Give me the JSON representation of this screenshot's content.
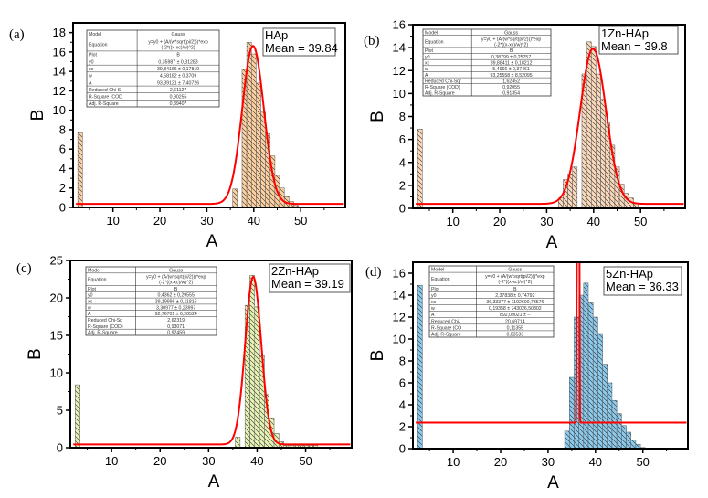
{
  "chart_data": [
    {
      "type": "bar",
      "panel_label": "(a)",
      "title": "",
      "xlabel": "A",
      "ylabel": "B",
      "xlim": [
        1.5,
        59.5
      ],
      "ylim": [
        0,
        19
      ],
      "xticks": [
        10,
        20,
        30,
        40,
        50
      ],
      "yticks": [
        0,
        2,
        4,
        6,
        8,
        10,
        12,
        14,
        16,
        18
      ],
      "bar_color": "#fdd1a2",
      "hatch": "diagonal",
      "legend": {
        "lines": [
          "HAp",
          "Mean = 39.84"
        ],
        "placement": "top-right"
      },
      "bins": [
        {
          "x": 3,
          "y": 7.7
        },
        {
          "x": 36,
          "y": 1.9
        },
        {
          "x": 38,
          "y": 14.2
        },
        {
          "x": 39,
          "y": 17.0
        },
        {
          "x": 40,
          "y": 15.8
        },
        {
          "x": 41,
          "y": 12.8
        },
        {
          "x": 42,
          "y": 9.8
        },
        {
          "x": 43,
          "y": 7.6
        },
        {
          "x": 44,
          "y": 5.3
        },
        {
          "x": 45,
          "y": 3.3
        },
        {
          "x": 46,
          "y": 2.0
        },
        {
          "x": 47,
          "y": 1.1
        },
        {
          "x": 48,
          "y": 0.6
        },
        {
          "x": 49,
          "y": 0.2
        }
      ],
      "fit": {
        "name": "Gauss",
        "y0": 0.35987,
        "xc": 39.84166,
        "w": 4.58182,
        "A": 93.39121,
        "color": "#ff0000"
      },
      "fit_table": [
        [
          "Model",
          "Gauss"
        ],
        [
          "Equation",
          "y=y0 + (A/(w*sqrt(pi/2)))*exp(-2*((x-xc)/w)^2)"
        ],
        [
          "Plot",
          "B"
        ],
        [
          "y0",
          "0,35987 ± 0,31283"
        ],
        [
          "xc",
          "39,84166 ± 0,17819"
        ],
        [
          "w",
          "4,58182 ± 0,3709"
        ],
        [
          "A",
          "93,39121 ± 7,40726"
        ],
        [
          "Reduced Chi-S",
          "2,61127"
        ],
        [
          "R-Square (COD",
          "0,90255"
        ],
        [
          "Adj. R-Square",
          "0,89407"
        ]
      ]
    },
    {
      "type": "bar",
      "panel_label": "(b)",
      "title": "",
      "xlabel": "A",
      "ylabel": "B",
      "xlim": [
        1.5,
        59.5
      ],
      "ylim": [
        0,
        16
      ],
      "xticks": [
        10,
        20,
        30,
        40,
        50
      ],
      "yticks": [
        0,
        2,
        4,
        6,
        8,
        10,
        12,
        14,
        16
      ],
      "bar_color": "#fad9bc",
      "hatch": "diagonal",
      "legend": {
        "lines": [
          "1Zn-HAp",
          "Mean = 39.8"
        ],
        "placement": "top-right"
      },
      "bins": [
        {
          "x": 3,
          "y": 6.9
        },
        {
          "x": 33,
          "y": 0.9
        },
        {
          "x": 34,
          "y": 2.5
        },
        {
          "x": 35,
          "y": 3.0
        },
        {
          "x": 36,
          "y": 3.6
        },
        {
          "x": 38,
          "y": 11.7
        },
        {
          "x": 39,
          "y": 14.5
        },
        {
          "x": 40,
          "y": 14.1
        },
        {
          "x": 41,
          "y": 11.7
        },
        {
          "x": 42,
          "y": 9.5
        },
        {
          "x": 43,
          "y": 7.5
        },
        {
          "x": 44,
          "y": 5.5
        },
        {
          "x": 45,
          "y": 3.6
        },
        {
          "x": 46,
          "y": 2.1
        },
        {
          "x": 47,
          "y": 1.3
        },
        {
          "x": 48,
          "y": 0.9
        },
        {
          "x": 49,
          "y": 0.4
        },
        {
          "x": 50,
          "y": 0.1
        }
      ],
      "fit": {
        "name": "Gauss",
        "y0": 0.38799,
        "xc": 39.88411,
        "w": 5.4966,
        "A": 93.25558,
        "color": "#ff0000"
      },
      "fit_table": [
        [
          "Model",
          "Gauss"
        ],
        [
          "Equation",
          "y=y0 + (A/(w*sqrt(pi/2)))*exp(-2*((x-xc)/w)^2)"
        ],
        [
          "Plot",
          "B"
        ],
        [
          "y0",
          "0,38799 ± 0,25757"
        ],
        [
          "xc",
          "39,88411 ± 0,18212"
        ],
        [
          "w",
          "5,4966 ± 0,37461"
        ],
        [
          "A",
          "93,25558 ± 8,52095"
        ],
        [
          "Reduced Chi-Sqr",
          "1,62452"
        ],
        [
          "R-Square (COD)",
          "0,92055"
        ],
        [
          "Adj. R-Square",
          "0,91354"
        ]
      ]
    },
    {
      "type": "bar",
      "panel_label": "(c)",
      "title": "",
      "xlabel": "A",
      "ylabel": "B",
      "xlim": [
        1.5,
        59.5
      ],
      "ylim": [
        0,
        25
      ],
      "xticks": [
        10,
        20,
        30,
        40,
        50
      ],
      "yticks": [
        0,
        5,
        10,
        15,
        20,
        25
      ],
      "bar_color": "#e6f3b5",
      "hatch": "diagonal",
      "legend": {
        "lines": [
          "2Zn-HAp",
          "Mean = 39.19"
        ],
        "placement": "top-right"
      },
      "bins": [
        {
          "x": 3,
          "y": 8.4
        },
        {
          "x": 36,
          "y": 1.4
        },
        {
          "x": 38,
          "y": 19.0
        },
        {
          "x": 39,
          "y": 23.0
        },
        {
          "x": 40,
          "y": 18.8
        },
        {
          "x": 41,
          "y": 12.3
        },
        {
          "x": 42,
          "y": 7.1
        },
        {
          "x": 43,
          "y": 4.0
        },
        {
          "x": 44,
          "y": 1.9
        },
        {
          "x": 45,
          "y": 0.8
        },
        {
          "x": 46,
          "y": 0.3
        },
        {
          "x": 47,
          "y": 0.3
        },
        {
          "x": 48,
          "y": 0.3
        },
        {
          "x": 49,
          "y": 0.3
        },
        {
          "x": 50,
          "y": 0.3
        },
        {
          "x": 51,
          "y": 0.3
        },
        {
          "x": 52,
          "y": 0.3
        }
      ],
      "fit": {
        "name": "Gauss",
        "y0": 0.4362,
        "xc": 39.19996,
        "w": 3.30977,
        "A": 92.76701,
        "color": "#ff0000"
      },
      "fit_table": [
        [
          "Model",
          "Gauss"
        ],
        [
          "Equation",
          "y=y0 + (A/(w*sqrt(pi/2)))*exp(-2*((x-xc)/w)^2)"
        ],
        [
          "Plot",
          "B"
        ],
        [
          "y0",
          "0,4362 ± 0,29555"
        ],
        [
          "xc",
          "39,19996 ± 0,11815"
        ],
        [
          "w",
          "3,30977 ± 0,23997"
        ],
        [
          "A",
          "92,76701 ± 6,28524"
        ],
        [
          "Reduced Chi-Sq",
          "2,62319"
        ],
        [
          "R-Square (COD)",
          "0,93071"
        ],
        [
          "Adj. R-Square",
          "0,92459"
        ]
      ]
    },
    {
      "type": "bar",
      "panel_label": "(d)",
      "title": "",
      "xlabel": "A",
      "ylabel": "B",
      "xlim": [
        1.5,
        59.5
      ],
      "ylim": [
        0,
        17
      ],
      "xticks": [
        10,
        20,
        30,
        40,
        50
      ],
      "yticks": [
        0,
        2,
        4,
        6,
        8,
        10,
        12,
        14,
        16
      ],
      "bar_color": "#8ccbee",
      "hatch": "diagonal",
      "legend": {
        "lines": [
          "5Zn-HAp",
          "Mean = 36.33"
        ],
        "placement": "top-right"
      },
      "bins": [
        {
          "x": 3,
          "y": 14.9
        },
        {
          "x": 34,
          "y": 1.6
        },
        {
          "x": 35,
          "y": 6.5
        },
        {
          "x": 36,
          "y": 12.0
        },
        {
          "x": 37,
          "y": 14.0
        },
        {
          "x": 38,
          "y": 15.1
        },
        {
          "x": 39,
          "y": 13.3
        },
        {
          "x": 40,
          "y": 12.0
        },
        {
          "x": 41,
          "y": 10.5
        },
        {
          "x": 42,
          "y": 7.7
        },
        {
          "x": 43,
          "y": 6.0
        },
        {
          "x": 44,
          "y": 4.4
        },
        {
          "x": 45,
          "y": 3.2
        },
        {
          "x": 46,
          "y": 2.1
        },
        {
          "x": 47,
          "y": 1.5
        },
        {
          "x": 48,
          "y": 0.8
        },
        {
          "x": 49,
          "y": 0.4
        },
        {
          "x": 50,
          "y": 0.1
        }
      ],
      "fit": {
        "name": "Gauss",
        "y0": 2.37838,
        "xc": 36.33377,
        "w": 0.19358,
        "A": 892.09021,
        "color": "#ff0000"
      },
      "fit_table": [
        [
          "Model",
          "Gauss"
        ],
        [
          "Equation",
          "y=y0 + (A/(w*sqrt(pi/2)))*exp(-2*((x-xc)/w)^2)"
        ],
        [
          "Plot",
          "B"
        ],
        [
          "y0",
          "2,37838 ± 0,74792"
        ],
        [
          "xc",
          "36,33377 ± 1192600,73576"
        ],
        [
          "w",
          "0,19358 ± 743026,50302"
        ],
        [
          "A",
          "892,09021 ± --"
        ],
        [
          "Reduced Chi-",
          "20,69714"
        ],
        [
          "R-Square (CO",
          "0,11355"
        ],
        [
          "Adj. R-Square",
          "0,03533"
        ]
      ]
    }
  ]
}
